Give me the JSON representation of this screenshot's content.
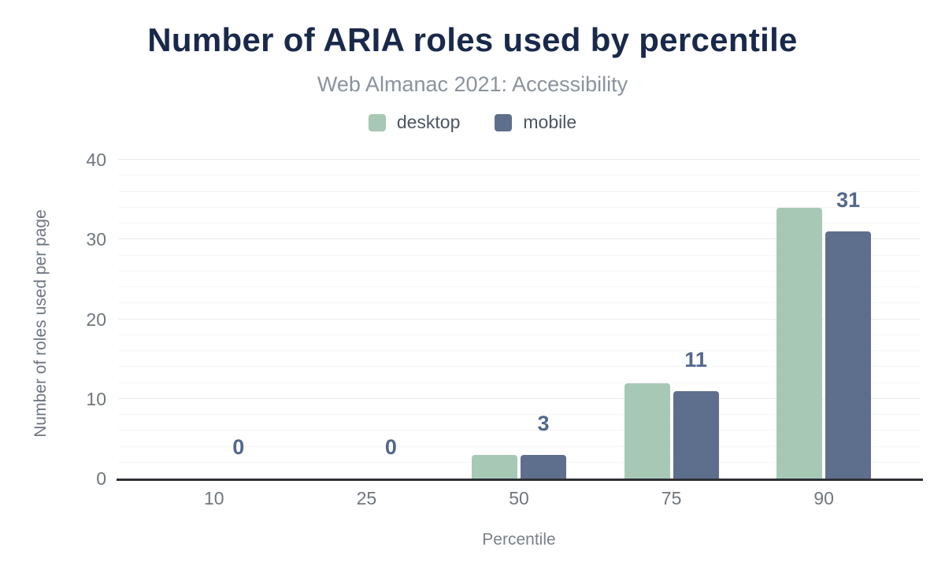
{
  "chart_data": {
    "type": "bar",
    "title": "Number of ARIA roles used by percentile",
    "subtitle": "Web Almanac 2021: Accessibility",
    "categories": [
      "10",
      "25",
      "50",
      "75",
      "90"
    ],
    "series": [
      {
        "name": "desktop",
        "color": "#a7c8b5",
        "values": [
          0,
          0,
          3,
          12,
          34
        ]
      },
      {
        "name": "mobile",
        "color": "#5e6f8d",
        "values": [
          0,
          0,
          3,
          11,
          31
        ]
      }
    ],
    "data_labels": [
      "0",
      "0",
      "3",
      "11",
      "31"
    ],
    "data_labels_series": "mobile",
    "xlabel": "Percentile",
    "ylabel": "Number of roles used per page",
    "ylim": [
      0,
      40
    ],
    "yticks": [
      0,
      10,
      20,
      30,
      40
    ],
    "minor_grid_step": 2,
    "grid": "horizontal",
    "legend_position": "top"
  },
  "colors": {
    "title": "#19294b",
    "subtitle": "#8b929c",
    "legend_text": "#4d5560",
    "axis_text": "#70767f",
    "axis_line": "#2d3035",
    "data_label": "#52678d",
    "gridline_minor": "#f5f5f7",
    "gridline_major": "#e9eaee",
    "background": "#ffffff"
  }
}
